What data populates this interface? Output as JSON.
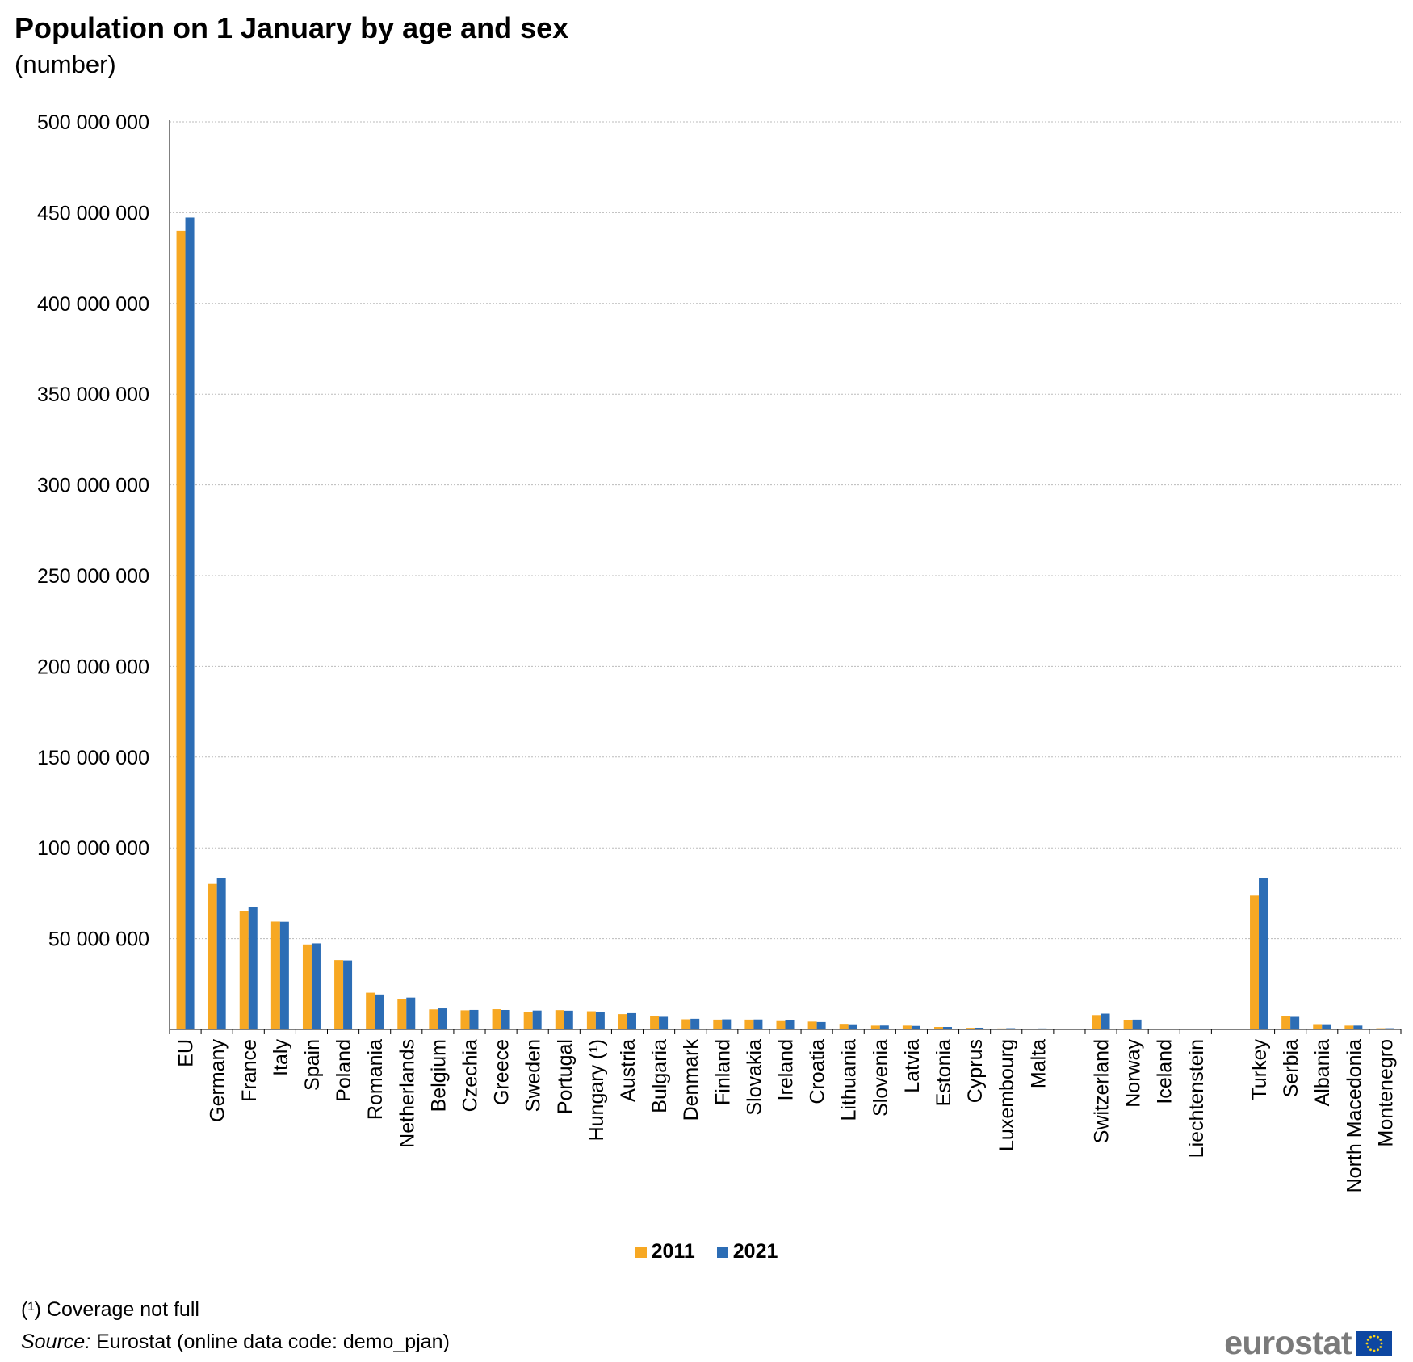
{
  "title": "Population on 1 January by age and sex",
  "subtitle": "(number)",
  "footnote": "(¹) Coverage not full",
  "source_label": "Source:",
  "source_text": " Eurostat (online data code: demo_pjan)",
  "logo_text": "eurostat",
  "colors": {
    "series_2011": "#F7A823",
    "series_2021": "#2C6DB5",
    "grid": "#bbbbbb",
    "axis": "#000000"
  },
  "chart_data": {
    "type": "bar",
    "title": "Population on 1 January by age and sex",
    "subtitle": "(number)",
    "ylim": [
      0,
      500000000
    ],
    "yticks": [
      0,
      50000000,
      100000000,
      150000000,
      200000000,
      250000000,
      300000000,
      350000000,
      400000000,
      450000000,
      500000000
    ],
    "ytick_labels": [
      "",
      "50 000 000",
      "100 000 000",
      "150 000 000",
      "200 000 000",
      "250 000 000",
      "300 000 000",
      "350 000 000",
      "400 000 000",
      "450 000 000",
      "500 000 000"
    ],
    "grid": true,
    "legend_position": "bottom-center",
    "categories": [
      "EU",
      "Germany",
      "France",
      "Italy",
      "Spain",
      "Poland",
      "Romania",
      "Netherlands",
      "Belgium",
      "Czechia",
      "Greece",
      "Sweden",
      "Portugal",
      "Hungary (¹)",
      "Austria",
      "Bulgaria",
      "Denmark",
      "Finland",
      "Slovakia",
      "Ireland",
      "Croatia",
      "Lithuania",
      "Slovenia",
      "Latvia",
      "Estonia",
      "Cyprus",
      "Luxembourg",
      "Malta",
      "",
      "Switzerland",
      "Norway",
      "Iceland",
      "Liechtenstein",
      "",
      "Turkey",
      "Serbia",
      "Albania",
      "North Macedonia",
      "Montenegro"
    ],
    "series": [
      {
        "name": "2011",
        "values": [
          440000000,
          80200000,
          65000000,
          59400000,
          46800000,
          38200000,
          20200000,
          16700000,
          11000000,
          10500000,
          11100000,
          9400000,
          10600000,
          9990000,
          8400000,
          7370000,
          5560000,
          5380000,
          5390000,
          4570000,
          4290000,
          3050000,
          2050000,
          2070000,
          1330000,
          840000,
          510000,
          415000,
          null,
          7870000,
          4920000,
          318000,
          36000,
          null,
          73700000,
          7240000,
          2900000,
          2060000,
          620000
        ]
      },
      {
        "name": "2021",
        "values": [
          447300000,
          83200000,
          67600000,
          59300000,
          47400000,
          38000000,
          19200000,
          17500000,
          11550000,
          10700000,
          10680000,
          10380000,
          10300000,
          9730000,
          8930000,
          6920000,
          5840000,
          5530000,
          5460000,
          5010000,
          4040000,
          2800000,
          2110000,
          1890000,
          1330000,
          896000,
          634000,
          516000,
          null,
          8670000,
          5390000,
          369000,
          39000,
          null,
          83600000,
          6900000,
          2830000,
          2070000,
          621000
        ]
      }
    ]
  }
}
